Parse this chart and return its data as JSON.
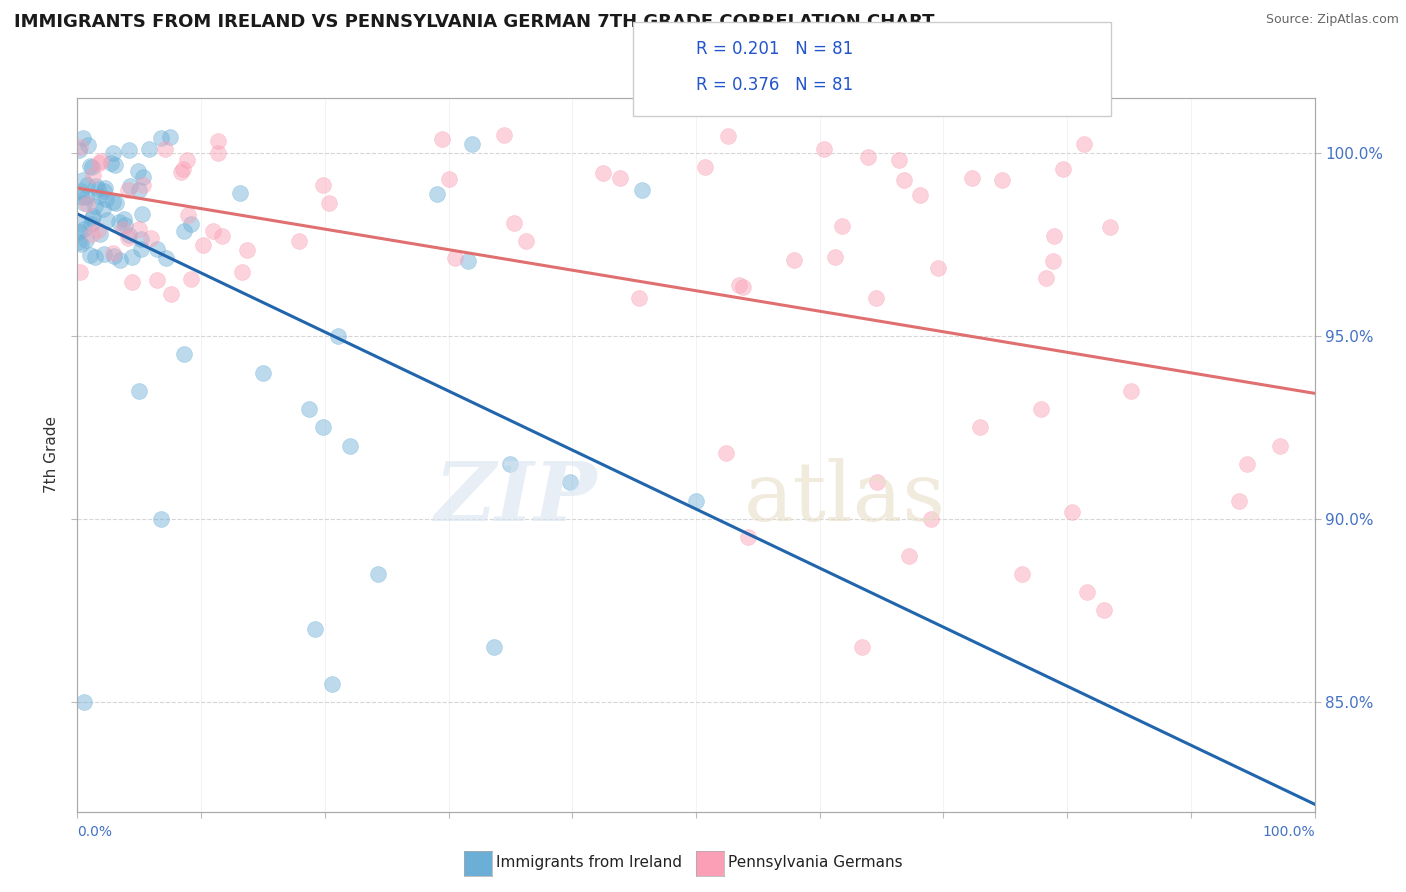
{
  "title": "IMMIGRANTS FROM IRELAND VS PENNSYLVANIA GERMAN 7TH GRADE CORRELATION CHART",
  "source": "Source: ZipAtlas.com",
  "ylabel": "7th Grade",
  "blue_R": 0.201,
  "pink_R": 0.376,
  "N": 81,
  "blue_color": "#6baed6",
  "pink_color": "#fa9fb5",
  "blue_line_color": "#2166ac",
  "pink_line_color": "#e07070",
  "legend_label_blue": "Immigrants from Ireland",
  "legend_label_pink": "Pennsylvania Germans",
  "background_color": "#ffffff",
  "xmin": 0.0,
  "xmax": 100.0,
  "ymin": 82.0,
  "ymax": 101.5,
  "right_yticks": [
    85.0,
    90.0,
    95.0,
    100.0
  ],
  "right_ytick_labels": [
    "85.0%",
    "90.0%",
    "95.0%",
    "100.0%"
  ]
}
